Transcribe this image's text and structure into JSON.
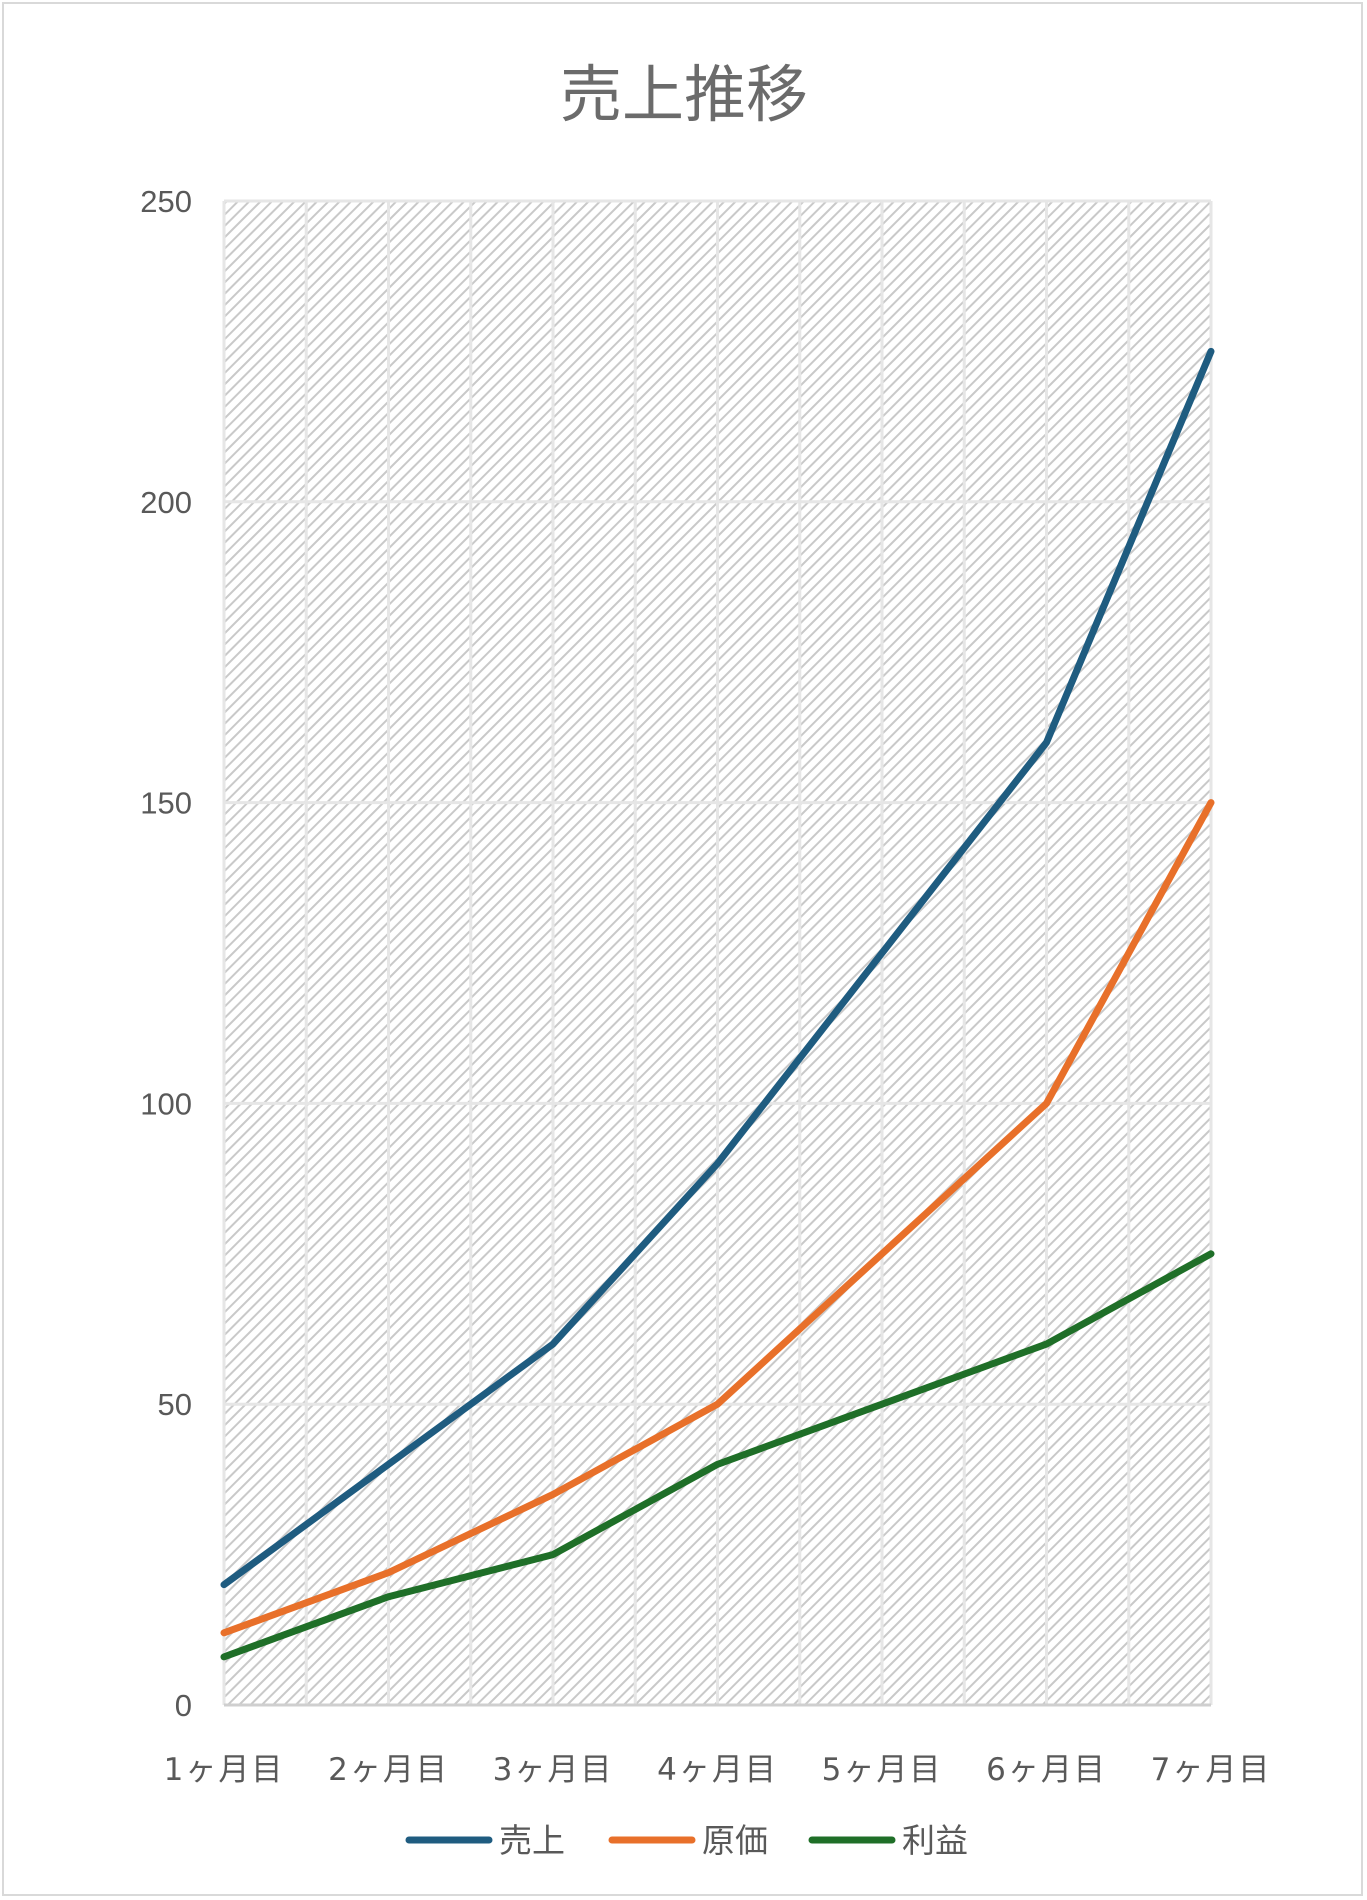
{
  "chart_data": {
    "type": "line",
    "title": "売上推移",
    "categories": [
      "1ヶ月目",
      "2ヶ月目",
      "3ヶ月目",
      "4ヶ月目",
      "5ヶ月目",
      "6ヶ月目",
      "7ヶ月目"
    ],
    "series": [
      {
        "name": "売上",
        "color": "#1f5c80",
        "values": [
          20,
          40,
          60,
          90,
          125,
          160,
          225
        ]
      },
      {
        "name": "原価",
        "color": "#e8702a",
        "values": [
          12,
          22,
          35,
          50,
          75,
          100,
          150
        ]
      },
      {
        "name": "利益",
        "color": "#1f6f28",
        "values": [
          8,
          18,
          25,
          40,
          50,
          60,
          75
        ]
      }
    ],
    "ylim": [
      0,
      250
    ],
    "yticks": [
      0,
      50,
      100,
      150,
      200,
      250
    ],
    "grid": true,
    "plot_background": "hatched light gray",
    "legend_position": "bottom"
  }
}
